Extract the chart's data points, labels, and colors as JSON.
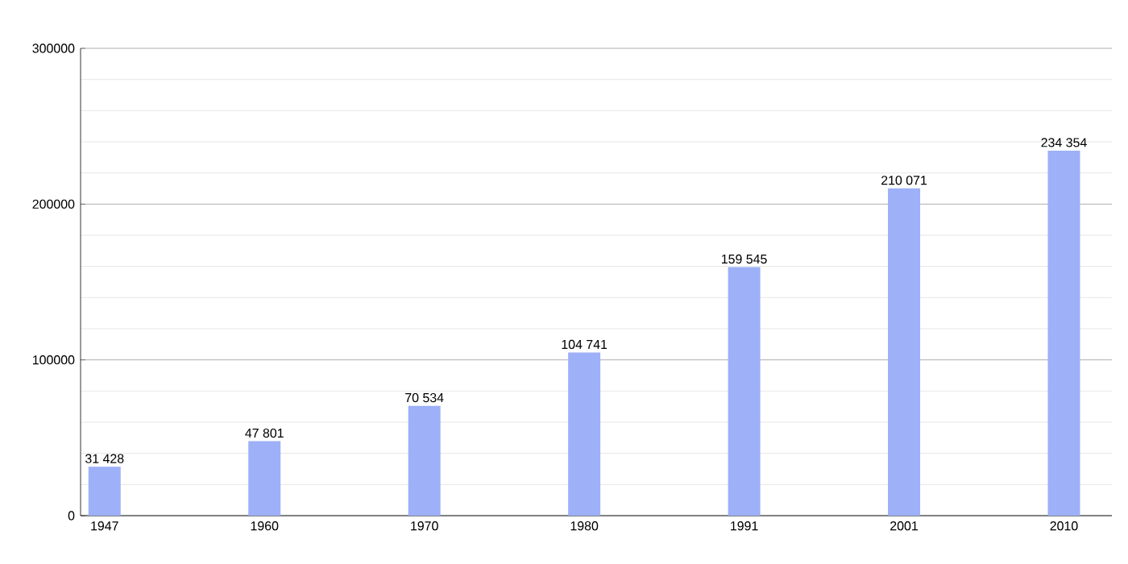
{
  "chart_data": {
    "type": "bar",
    "categories": [
      "1947",
      "1960",
      "1970",
      "1980",
      "1991",
      "2001",
      "2010"
    ],
    "values": [
      31428,
      47801,
      70534,
      104741,
      159545,
      210071,
      234354
    ],
    "value_labels": [
      "31 428",
      "47 801",
      "70 534",
      "104 741",
      "159 545",
      "210 071",
      "234 354"
    ],
    "color": "#9db0f8",
    "ylim": [
      0,
      300000
    ],
    "yticks": [
      0,
      100000,
      200000,
      300000
    ],
    "grid": true
  }
}
